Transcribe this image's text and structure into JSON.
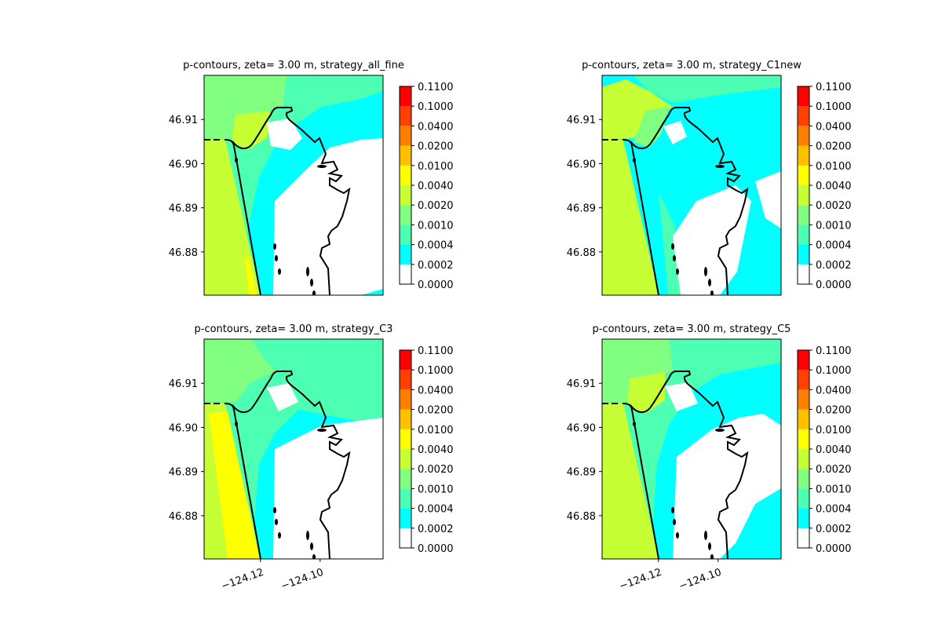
{
  "chart_data": [
    {
      "type": "contour",
      "title": "p-contours, zeta= 3.00 m, strategy_all_fine",
      "xlim": [
        -124.1389,
        -124.0789
      ],
      "ylim": [
        46.8702,
        46.92
      ],
      "yticks": [
        46.88,
        46.89,
        {
          "value": 46.9,
          "label": "46.90"
        },
        46.91
      ],
      "levels": [
        {
          "value": 0,
          "label": "0.0000"
        },
        {
          "value": 0.0002,
          "label": "0.0002"
        },
        {
          "value": 0.0004,
          "label": "0.0004"
        },
        {
          "value": 0.001,
          "label": "0.0010"
        },
        {
          "value": 0.002,
          "label": "0.0020"
        },
        {
          "value": 0.004,
          "label": "0.0040"
        },
        {
          "value": 0.01,
          "label": "0.0100"
        },
        {
          "value": 0.02,
          "label": "0.0200"
        },
        {
          "value": 0.04,
          "label": "0.0400"
        },
        {
          "value": 0.1,
          "label": "0.1000"
        },
        {
          "value": 0.11,
          "label": "0.1100"
        }
      ],
      "colors": [
        "#ffffff",
        "#00ffff",
        "#4dffb3",
        "#80ff80",
        "#c6ff33",
        "#ffff00",
        "#ffc000",
        "#ff8000",
        "#ff4000",
        "#ff0000"
      ]
    },
    {
      "type": "contour",
      "title": "p-contours, zeta= 3.00 m, strategy_C1new",
      "xlim": [
        -124.1389,
        -124.0789
      ],
      "ylim": [
        46.8702,
        46.92
      ],
      "yticks": [
        46.88,
        46.89,
        {
          "value": 46.9,
          "label": "46.90"
        },
        46.91
      ],
      "levels": [
        {
          "value": 0,
          "label": "0.0000"
        },
        {
          "value": 0.0002,
          "label": "0.0002"
        },
        {
          "value": 0.0004,
          "label": "0.0004"
        },
        {
          "value": 0.001,
          "label": "0.0010"
        },
        {
          "value": 0.002,
          "label": "0.0020"
        },
        {
          "value": 0.004,
          "label": "0.0040"
        },
        {
          "value": 0.01,
          "label": "0.0100"
        },
        {
          "value": 0.02,
          "label": "0.0200"
        },
        {
          "value": 0.04,
          "label": "0.0400"
        },
        {
          "value": 0.1,
          "label": "0.1000"
        },
        {
          "value": 0.11,
          "label": "0.1100"
        }
      ],
      "colors": [
        "#ffffff",
        "#00ffff",
        "#4dffb3",
        "#80ff80",
        "#c6ff33",
        "#ffff00",
        "#ffc000",
        "#ff8000",
        "#ff4000",
        "#ff0000"
      ]
    },
    {
      "type": "contour",
      "title": "p-contours, zeta= 3.00 m, strategy_C3",
      "xlim": [
        -124.1389,
        -124.0789
      ],
      "ylim": [
        46.8702,
        46.92
      ],
      "xticks": [
        {
          "value": -124.12,
          "label": "−124.12"
        },
        {
          "value": -124.1,
          "label": "−124.10"
        }
      ],
      "yticks": [
        46.88,
        46.89,
        {
          "value": 46.9,
          "label": "46.90"
        },
        46.91
      ],
      "levels": [
        {
          "value": 0,
          "label": "0.0000"
        },
        {
          "value": 0.0002,
          "label": "0.0002"
        },
        {
          "value": 0.0004,
          "label": "0.0004"
        },
        {
          "value": 0.001,
          "label": "0.0010"
        },
        {
          "value": 0.002,
          "label": "0.0020"
        },
        {
          "value": 0.004,
          "label": "0.0040"
        },
        {
          "value": 0.01,
          "label": "0.0100"
        },
        {
          "value": 0.02,
          "label": "0.0200"
        },
        {
          "value": 0.04,
          "label": "0.0400"
        },
        {
          "value": 0.1,
          "label": "0.1000"
        },
        {
          "value": 0.11,
          "label": "0.1100"
        }
      ],
      "colors": [
        "#ffffff",
        "#00ffff",
        "#4dffb3",
        "#80ff80",
        "#c6ff33",
        "#ffff00",
        "#ffc000",
        "#ff8000",
        "#ff4000",
        "#ff0000"
      ]
    },
    {
      "type": "contour",
      "title": "p-contours, zeta= 3.00 m, strategy_C5",
      "xlim": [
        -124.1389,
        -124.0789
      ],
      "ylim": [
        46.8702,
        46.92
      ],
      "xticks": [
        {
          "value": -124.12,
          "label": "−124.12"
        },
        {
          "value": -124.1,
          "label": "−124.10"
        }
      ],
      "yticks": [
        46.88,
        46.89,
        {
          "value": 46.9,
          "label": "46.90"
        },
        46.91
      ],
      "levels": [
        {
          "value": 0,
          "label": "0.0000"
        },
        {
          "value": 0.0002,
          "label": "0.0002"
        },
        {
          "value": 0.0004,
          "label": "0.0004"
        },
        {
          "value": 0.001,
          "label": "0.0010"
        },
        {
          "value": 0.002,
          "label": "0.0020"
        },
        {
          "value": 0.004,
          "label": "0.0040"
        },
        {
          "value": 0.01,
          "label": "0.0100"
        },
        {
          "value": 0.02,
          "label": "0.0200"
        },
        {
          "value": 0.04,
          "label": "0.0400"
        },
        {
          "value": 0.1,
          "label": "0.1000"
        },
        {
          "value": 0.11,
          "label": "0.1100"
        }
      ],
      "colors": [
        "#ffffff",
        "#00ffff",
        "#4dffb3",
        "#80ff80",
        "#c6ff33",
        "#ffff00",
        "#ffc000",
        "#ff8000",
        "#ff4000",
        "#ff0000"
      ]
    }
  ]
}
